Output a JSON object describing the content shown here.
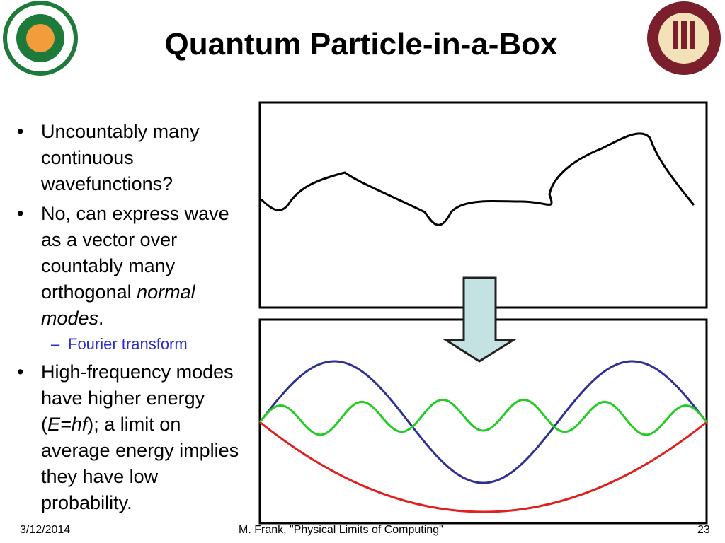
{
  "header": {
    "title": "Quantum Particle-in-a-Box"
  },
  "bullets": [
    {
      "text": "Uncountably many continuous wavefunctions?"
    },
    {
      "text": "No, can express wave as a vector over countably many orthogonal ",
      "italic": "normal modes",
      "after": ".",
      "sub": "Fourier transform"
    },
    {
      "text": "High-frequency modes have higher energy (",
      "italic": "E=hf",
      "after": "); a limit on average energy implies they have low probability."
    }
  ],
  "footer": {
    "date": "3/12/2014",
    "author": "M. Frank, \"Physical Limits of Computing\"",
    "page": "23"
  }
}
